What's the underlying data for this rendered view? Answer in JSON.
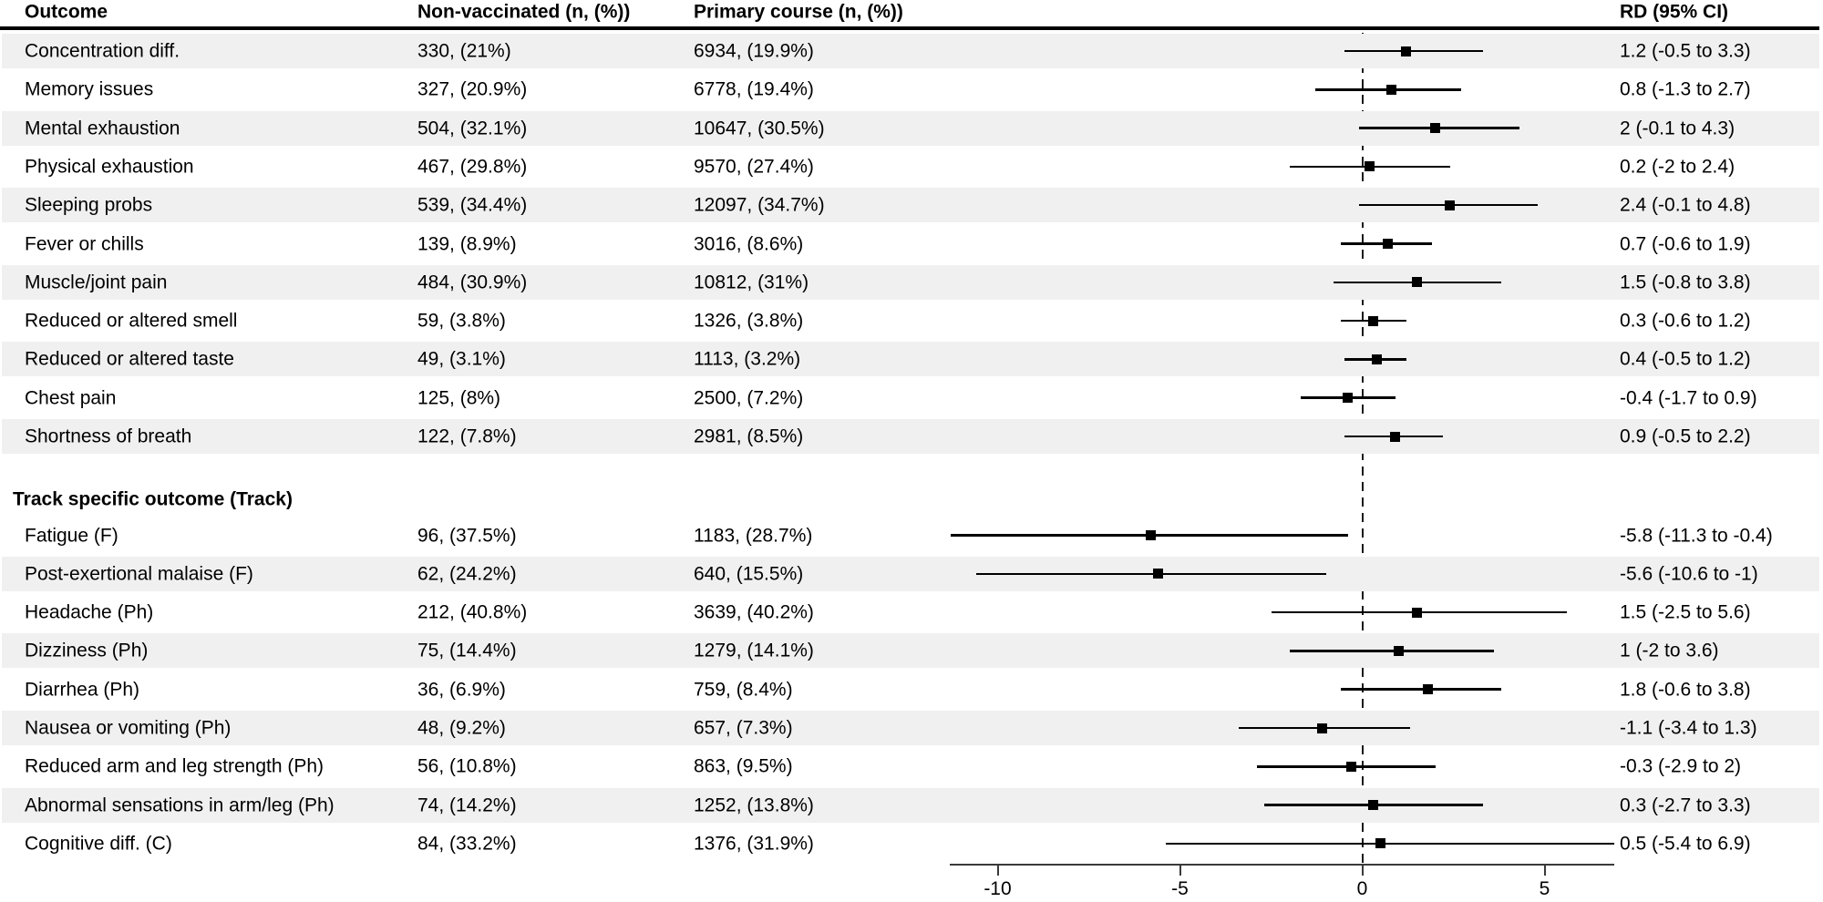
{
  "figure": {
    "columns": {
      "outcome": "Outcome",
      "nonvaccinated": "Non-vaccinated (n, (%))",
      "primary_course": "Primary course (n, (%))",
      "rd": "RD (95% CI)"
    },
    "colors": {
      "row_shade": "#f0f0f0",
      "text": "#000000",
      "ci_line": "#000000",
      "axis": "#3a3a3a"
    }
  },
  "chart_data": {
    "type": "forest",
    "title": "",
    "xlabel": "",
    "x_axis": {
      "ticks": [
        -10,
        -5,
        0,
        5
      ],
      "tick_labels": [
        "-10",
        "-5",
        "0",
        "5"
      ],
      "xlim": [
        -11.3,
        6.9
      ],
      "zero_reference_line": 0,
      "zero_line_style": "dashed"
    },
    "columns": [
      "Outcome",
      "Non-vaccinated (n, (%))",
      "Primary course (n, (%))",
      "RD (95% CI)"
    ],
    "sections": [
      {
        "header": null,
        "rows": [
          {
            "outcome": "Concentration diff.",
            "non_vaccinated": "330, (21%)",
            "primary_course": "6934, (19.9%)",
            "rd_text": "1.2 (-0.5 to 3.3)",
            "rd": 1.2,
            "ci_low": -0.5,
            "ci_high": 3.3,
            "shaded": true
          },
          {
            "outcome": "Memory issues",
            "non_vaccinated": "327, (20.9%)",
            "primary_course": "6778, (19.4%)",
            "rd_text": "0.8 (-1.3 to 2.7)",
            "rd": 0.8,
            "ci_low": -1.3,
            "ci_high": 2.7,
            "shaded": false
          },
          {
            "outcome": "Mental exhaustion",
            "non_vaccinated": "504, (32.1%)",
            "primary_course": "10647, (30.5%)",
            "rd_text": "2 (-0.1 to 4.3)",
            "rd": 2,
            "ci_low": -0.1,
            "ci_high": 4.3,
            "shaded": true
          },
          {
            "outcome": "Physical exhaustion",
            "non_vaccinated": "467, (29.8%)",
            "primary_course": "9570, (27.4%)",
            "rd_text": "0.2 (-2 to 2.4)",
            "rd": 0.2,
            "ci_low": -2,
            "ci_high": 2.4,
            "shaded": false
          },
          {
            "outcome": "Sleeping probs",
            "non_vaccinated": "539, (34.4%)",
            "primary_course": "12097, (34.7%)",
            "rd_text": "2.4 (-0.1 to 4.8)",
            "rd": 2.4,
            "ci_low": -0.1,
            "ci_high": 4.8,
            "shaded": true
          },
          {
            "outcome": "Fever or chills",
            "non_vaccinated": "139, (8.9%)",
            "primary_course": "3016, (8.6%)",
            "rd_text": "0.7 (-0.6 to 1.9)",
            "rd": 0.7,
            "ci_low": -0.6,
            "ci_high": 1.9,
            "shaded": false
          },
          {
            "outcome": "Muscle/joint pain",
            "non_vaccinated": "484, (30.9%)",
            "primary_course": "10812, (31%)",
            "rd_text": "1.5 (-0.8 to 3.8)",
            "rd": 1.5,
            "ci_low": -0.8,
            "ci_high": 3.8,
            "shaded": true
          },
          {
            "outcome": "Reduced or altered smell",
            "non_vaccinated": "59, (3.8%)",
            "primary_course": "1326, (3.8%)",
            "rd_text": "0.3 (-0.6 to 1.2)",
            "rd": 0.3,
            "ci_low": -0.6,
            "ci_high": 1.2,
            "shaded": false
          },
          {
            "outcome": "Reduced or altered taste",
            "non_vaccinated": "49, (3.1%)",
            "primary_course": "1113, (3.2%)",
            "rd_text": "0.4 (-0.5 to 1.2)",
            "rd": 0.4,
            "ci_low": -0.5,
            "ci_high": 1.2,
            "shaded": true
          },
          {
            "outcome": "Chest pain",
            "non_vaccinated": "125, (8%)",
            "primary_course": "2500, (7.2%)",
            "rd_text": "-0.4 (-1.7 to 0.9)",
            "rd": -0.4,
            "ci_low": -1.7,
            "ci_high": 0.9,
            "shaded": false
          },
          {
            "outcome": "Shortness of breath",
            "non_vaccinated": "122, (7.8%)",
            "primary_course": "2981, (8.5%)",
            "rd_text": "0.9 (-0.5 to 2.2)",
            "rd": 0.9,
            "ci_low": -0.5,
            "ci_high": 2.2,
            "shaded": true
          }
        ]
      },
      {
        "header": "Track specific outcome (Track)",
        "rows": [
          {
            "outcome": "Fatigue (F)",
            "non_vaccinated": "96, (37.5%)",
            "primary_course": "1183, (28.7%)",
            "rd_text": "-5.8 (-11.3 to -0.4)",
            "rd": -5.8,
            "ci_low": -11.3,
            "ci_high": -0.4,
            "shaded": false
          },
          {
            "outcome": "Post-exertional malaise (F)",
            "non_vaccinated": "62, (24.2%)",
            "primary_course": "640, (15.5%)",
            "rd_text": "-5.6 (-10.6 to -1)",
            "rd": -5.6,
            "ci_low": -10.6,
            "ci_high": -1,
            "shaded": true
          },
          {
            "outcome": "Headache (Ph)",
            "non_vaccinated": "212, (40.8%)",
            "primary_course": "3639, (40.2%)",
            "rd_text": "1.5 (-2.5 to 5.6)",
            "rd": 1.5,
            "ci_low": -2.5,
            "ci_high": 5.6,
            "shaded": false
          },
          {
            "outcome": "Dizziness (Ph)",
            "non_vaccinated": "75, (14.4%)",
            "primary_course": "1279, (14.1%)",
            "rd_text": "1 (-2 to 3.6)",
            "rd": 1,
            "ci_low": -2,
            "ci_high": 3.6,
            "shaded": true
          },
          {
            "outcome": "Diarrhea (Ph)",
            "non_vaccinated": "36, (6.9%)",
            "primary_course": "759, (8.4%)",
            "rd_text": "1.8 (-0.6 to 3.8)",
            "rd": 1.8,
            "ci_low": -0.6,
            "ci_high": 3.8,
            "shaded": false
          },
          {
            "outcome": "Nausea or vomiting (Ph)",
            "non_vaccinated": "48, (9.2%)",
            "primary_course": "657, (7.3%)",
            "rd_text": "-1.1 (-3.4 to 1.3)",
            "rd": -1.1,
            "ci_low": -3.4,
            "ci_high": 1.3,
            "shaded": true
          },
          {
            "outcome": "Reduced arm and leg strength (Ph)",
            "non_vaccinated": "56, (10.8%)",
            "primary_course": "863, (9.5%)",
            "rd_text": "-0.3 (-2.9 to 2)",
            "rd": -0.3,
            "ci_low": -2.9,
            "ci_high": 2,
            "shaded": false
          },
          {
            "outcome": "Abnormal sensations in arm/leg (Ph)",
            "non_vaccinated": "74, (14.2%)",
            "primary_course": "1252, (13.8%)",
            "rd_text": "0.3 (-2.7 to 3.3)",
            "rd": 0.3,
            "ci_low": -2.7,
            "ci_high": 3.3,
            "shaded": true
          },
          {
            "outcome": "Cognitive diff. (C)",
            "non_vaccinated": "84, (33.2%)",
            "primary_course": "1376, (31.9%)",
            "rd_text": "0.5 (-5.4 to 6.9)",
            "rd": 0.5,
            "ci_low": -5.4,
            "ci_high": 6.9,
            "shaded": false
          }
        ]
      }
    ]
  }
}
